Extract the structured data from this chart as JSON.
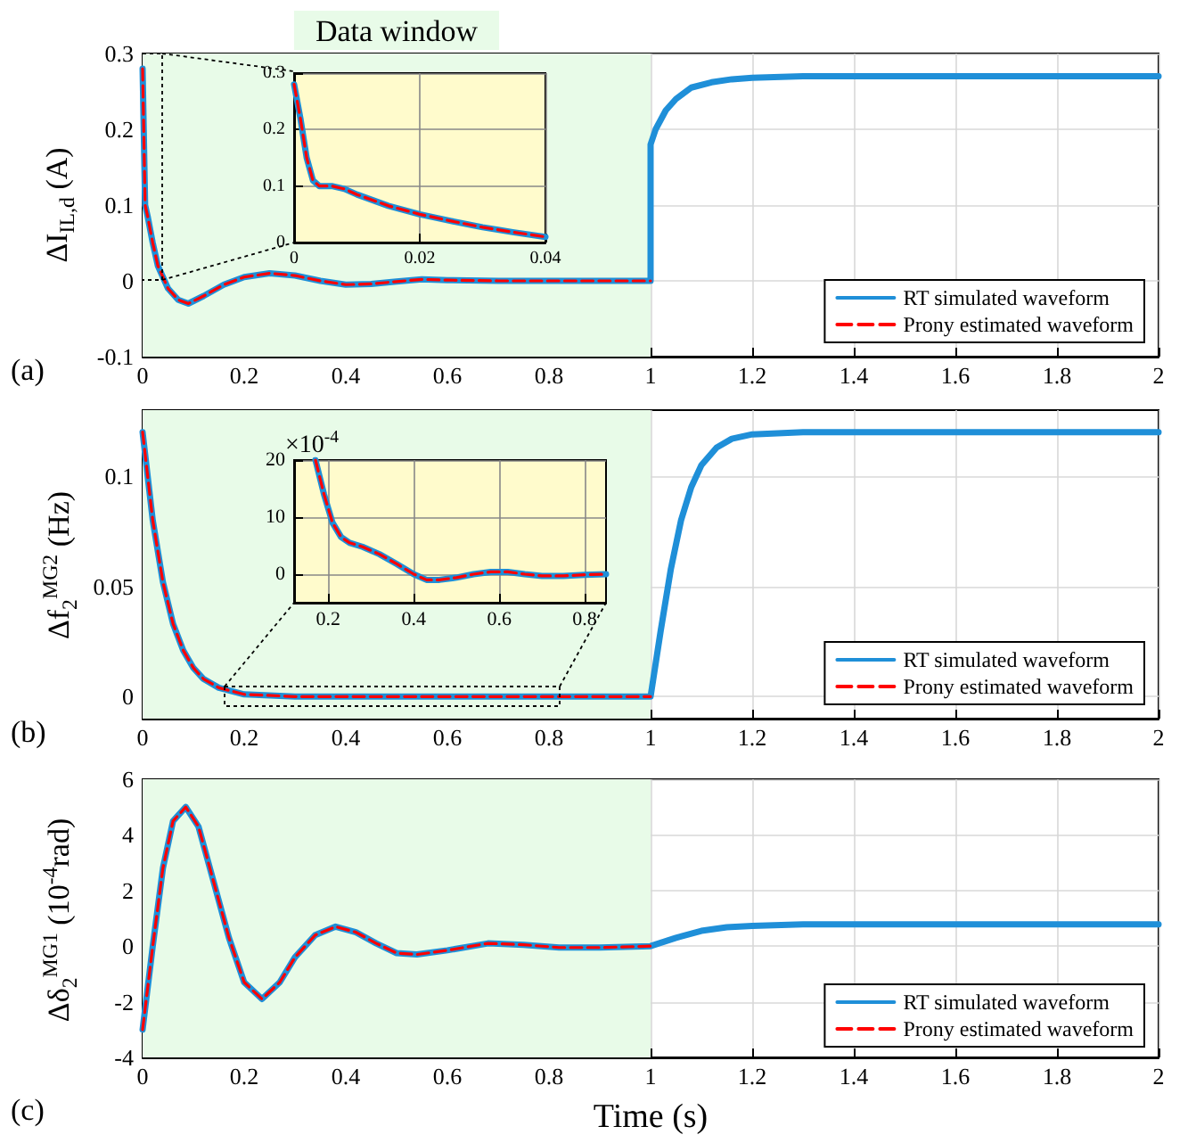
{
  "chart_data": [
    {
      "type": "line",
      "ylabel": "ΔI$_{IL,d}$ (A)",
      "annotations": [
        "(a)"
      ],
      "xlim": [
        0,
        2
      ],
      "xticks": [
        0,
        0.2,
        0.4,
        0.6,
        0.8,
        1,
        1.2,
        1.4,
        1.6,
        1.8,
        2
      ],
      "ylim": [
        -0.1,
        0.3
      ],
      "yticks": [
        -0.1,
        0,
        0.1,
        0.2,
        0.3
      ],
      "grid": true,
      "legend": "bottom right",
      "bands": [
        {
          "axis": "x",
          "from": 0,
          "to": 1,
          "label": "Data window",
          "color": "#e8fbe8"
        }
      ],
      "series": [
        {
          "name": "RT simulated waveform",
          "color": "#1f8fd8",
          "x": [
            0,
            0.005,
            0.01,
            0.02,
            0.03,
            0.05,
            0.07,
            0.09,
            0.12,
            0.16,
            0.2,
            0.25,
            0.3,
            0.35,
            0.4,
            0.45,
            0.5,
            0.55,
            0.6,
            0.7,
            0.8,
            0.9,
            1,
            1,
            1.01,
            1.03,
            1.05,
            1.08,
            1.12,
            1.16,
            1.2,
            1.3,
            1.5,
            2
          ],
          "values": [
            0.28,
            0.1,
            0.085,
            0.05,
            0.02,
            -0.01,
            -0.025,
            -0.03,
            -0.02,
            -0.005,
            0.005,
            0.01,
            0.007,
            0,
            -0.005,
            -0.004,
            -0.001,
            0.002,
            0.001,
            0,
            0,
            0,
            0,
            0.18,
            0.2,
            0.225,
            0.24,
            0.255,
            0.262,
            0.266,
            0.268,
            0.27,
            0.27,
            0.27
          ]
        },
        {
          "name": "Prony estimated waveform",
          "color": "#ff0000",
          "line_style": "dashed",
          "x": [
            0,
            0.005,
            0.01,
            0.02,
            0.03,
            0.05,
            0.07,
            0.09,
            0.12,
            0.16,
            0.2,
            0.25,
            0.3,
            0.35,
            0.4,
            0.45,
            0.5,
            0.55,
            0.6,
            0.7,
            0.8,
            0.9,
            1
          ],
          "values": [
            0.28,
            0.1,
            0.085,
            0.05,
            0.02,
            -0.01,
            -0.025,
            -0.03,
            -0.02,
            -0.005,
            0.005,
            0.01,
            0.007,
            0,
            -0.005,
            -0.004,
            -0.001,
            0.002,
            0.001,
            0,
            0,
            0,
            0
          ]
        }
      ]
    },
    {
      "type": "line",
      "xlim": [
        0,
        0.04
      ],
      "xticks": [
        0,
        0.02,
        0.04
      ],
      "ylim": [
        0,
        0.3
      ],
      "yticks": [
        0,
        0.1,
        0.2,
        0.3
      ],
      "grid": true,
      "series": [
        {
          "color": "#1f8fd8",
          "x": [
            0,
            0.001,
            0.002,
            0.003,
            0.004,
            0.006,
            0.008,
            0.01,
            0.015,
            0.02,
            0.025,
            0.03,
            0.035,
            0.04
          ],
          "values": [
            0.28,
            0.22,
            0.15,
            0.11,
            0.1,
            0.1,
            0.095,
            0.085,
            0.065,
            0.05,
            0.038,
            0.027,
            0.018,
            0.01
          ]
        },
        {
          "color": "#ff0000",
          "line_style": "dashed",
          "x": [
            0,
            0.001,
            0.002,
            0.003,
            0.004,
            0.006,
            0.008,
            0.01,
            0.015,
            0.02,
            0.025,
            0.03,
            0.035,
            0.04
          ],
          "values": [
            0.28,
            0.22,
            0.15,
            0.11,
            0.1,
            0.1,
            0.095,
            0.085,
            0.065,
            0.05,
            0.038,
            0.027,
            0.018,
            0.01
          ]
        }
      ]
    },
    {
      "type": "line",
      "ylabel": "Δf$_{2}$$^{MG2}$ (Hz)",
      "annotations": [
        "(b)"
      ],
      "xlim": [
        0,
        2
      ],
      "xticks": [
        0,
        0.2,
        0.4,
        0.6,
        0.8,
        1,
        1.2,
        1.4,
        1.6,
        1.8,
        2
      ],
      "ylim": [
        -0.01,
        0.13
      ],
      "yticks": [
        0,
        0.05,
        0.1
      ],
      "grid": true,
      "legend": "bottom right",
      "bands": [
        {
          "axis": "x",
          "from": 0,
          "to": 1,
          "color": "#e8fbe8"
        }
      ],
      "series": [
        {
          "name": "RT simulated waveform",
          "color": "#1f8fd8",
          "x": [
            0,
            0.02,
            0.04,
            0.06,
            0.08,
            0.1,
            0.12,
            0.15,
            0.2,
            0.3,
            0.45,
            0.6,
            0.8,
            1,
            1.02,
            1.04,
            1.06,
            1.08,
            1.1,
            1.13,
            1.16,
            1.2,
            1.3,
            2
          ],
          "values": [
            0.12,
            0.08,
            0.052,
            0.033,
            0.021,
            0.013,
            0.008,
            0.004,
            0.001,
            0,
            0,
            0,
            0,
            0,
            0.03,
            0.058,
            0.08,
            0.095,
            0.105,
            0.113,
            0.117,
            0.119,
            0.12,
            0.12
          ]
        },
        {
          "name": "Prony estimated waveform",
          "color": "#ff0000",
          "line_style": "dashed",
          "x": [
            0,
            0.02,
            0.04,
            0.06,
            0.08,
            0.1,
            0.12,
            0.15,
            0.2,
            0.3,
            0.45,
            0.6,
            0.8,
            1
          ],
          "values": [
            0.12,
            0.08,
            0.052,
            0.033,
            0.021,
            0.013,
            0.008,
            0.004,
            0.001,
            0,
            0,
            0,
            0,
            0
          ]
        }
      ]
    },
    {
      "type": "line",
      "annotations": [
        "×10$^{-4}$"
      ],
      "xlim": [
        0.12,
        0.85
      ],
      "xticks": [
        0.2,
        0.4,
        0.6,
        0.8
      ],
      "ylim": [
        -5,
        20
      ],
      "yticks": [
        0,
        10,
        20
      ],
      "grid": true,
      "series": [
        {
          "color": "#1f8fd8",
          "x": [
            0.17,
            0.19,
            0.21,
            0.23,
            0.25,
            0.28,
            0.32,
            0.36,
            0.4,
            0.43,
            0.46,
            0.5,
            0.54,
            0.58,
            0.62,
            0.66,
            0.7,
            0.75,
            0.8,
            0.85
          ],
          "values": [
            20,
            14,
            9,
            6.5,
            5.5,
            4.8,
            3.5,
            1.8,
            0,
            -1,
            -1,
            -0.6,
            0,
            0.4,
            0.4,
            0,
            -0.3,
            -0.3,
            -0.1,
            0
          ]
        },
        {
          "color": "#ff0000",
          "line_style": "dashed",
          "x": [
            0.17,
            0.19,
            0.21,
            0.23,
            0.25,
            0.28,
            0.32,
            0.36,
            0.4,
            0.43,
            0.46,
            0.5,
            0.54,
            0.58,
            0.62,
            0.66,
            0.7,
            0.75,
            0.8,
            0.85
          ],
          "values": [
            20,
            14,
            9,
            6.5,
            5.5,
            4.8,
            3.5,
            1.8,
            0,
            -1,
            -1,
            -0.6,
            0,
            0.4,
            0.4,
            0,
            -0.3,
            -0.3,
            -0.1,
            0
          ]
        }
      ]
    },
    {
      "type": "line",
      "ylabel": "Δδ$_{2}$$^{MG1}$ (10$^{-4}$rad)",
      "xlabel": "Time (s)",
      "annotations": [
        "(c)"
      ],
      "xlim": [
        0,
        2
      ],
      "xticks": [
        0,
        0.2,
        0.4,
        0.6,
        0.8,
        1,
        1.2,
        1.4,
        1.6,
        1.8,
        2
      ],
      "ylim": [
        -4,
        6
      ],
      "yticks": [
        -4,
        -2,
        0,
        2,
        4,
        6
      ],
      "grid": true,
      "legend": "bottom right",
      "bands": [
        {
          "axis": "x",
          "from": 0,
          "to": 1,
          "color": "#e8fbe8"
        }
      ],
      "series": [
        {
          "name": "RT simulated waveform",
          "color": "#1f8fd8",
          "x": [
            0,
            0.02,
            0.04,
            0.06,
            0.085,
            0.11,
            0.14,
            0.17,
            0.2,
            0.235,
            0.27,
            0.3,
            0.34,
            0.38,
            0.42,
            0.46,
            0.5,
            0.54,
            0.6,
            0.68,
            0.75,
            0.82,
            0.9,
            1,
            1.05,
            1.1,
            1.15,
            1.2,
            1.3,
            2
          ],
          "values": [
            -3,
            0,
            2.8,
            4.5,
            5,
            4.3,
            2.3,
            0.3,
            -1.3,
            -1.9,
            -1.3,
            -0.4,
            0.4,
            0.7,
            0.5,
            0.1,
            -0.25,
            -0.3,
            -0.15,
            0.1,
            0.05,
            -0.05,
            -0.05,
            0,
            0.3,
            0.55,
            0.68,
            0.73,
            0.78,
            0.78
          ]
        },
        {
          "name": "Prony estimated waveform",
          "color": "#ff0000",
          "line_style": "dashed",
          "x": [
            0,
            0.02,
            0.04,
            0.06,
            0.085,
            0.11,
            0.14,
            0.17,
            0.2,
            0.235,
            0.27,
            0.3,
            0.34,
            0.38,
            0.42,
            0.46,
            0.5,
            0.54,
            0.6,
            0.68,
            0.75,
            0.82,
            0.9,
            1
          ],
          "values": [
            -3,
            0,
            2.8,
            4.5,
            5,
            4.3,
            2.3,
            0.3,
            -1.3,
            -1.9,
            -1.3,
            -0.4,
            0.4,
            0.7,
            0.5,
            0.1,
            -0.25,
            -0.3,
            -0.15,
            0.1,
            0.05,
            -0.05,
            -0.05,
            0
          ]
        }
      ]
    }
  ]
}
